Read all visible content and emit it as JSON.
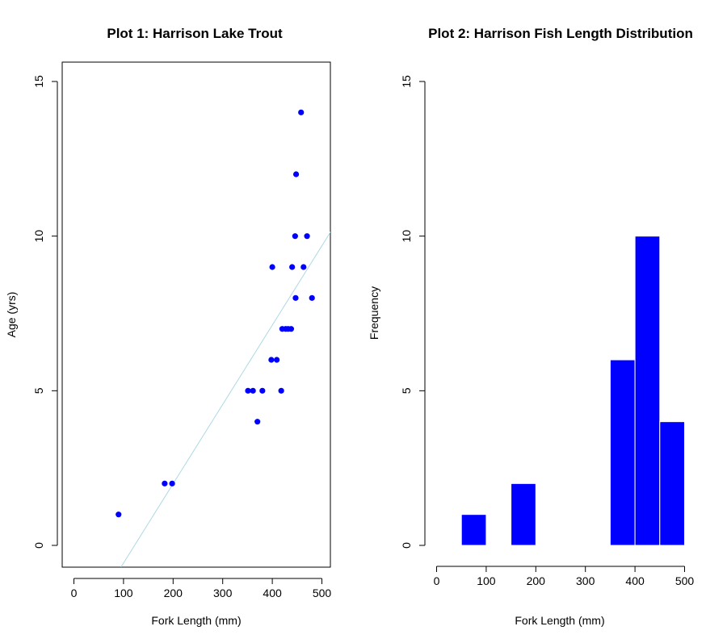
{
  "chart_data": [
    {
      "type": "scatter",
      "title": "Plot 1: Harrison Lake Trout",
      "xlabel": "Fork Length (mm)",
      "ylabel": "Age (yrs)",
      "xlim": [
        -20,
        520
      ],
      "ylim": [
        -0.6,
        15.6
      ],
      "xticks": [
        "0",
        "100",
        "200",
        "300",
        "400",
        "500"
      ],
      "yticks": [
        "0",
        "5",
        "10",
        "15"
      ],
      "point_color": "#0000ff",
      "points": [
        {
          "x": 90,
          "y": 1
        },
        {
          "x": 183,
          "y": 2
        },
        {
          "x": 198,
          "y": 2
        },
        {
          "x": 351,
          "y": 5
        },
        {
          "x": 361,
          "y": 5
        },
        {
          "x": 380,
          "y": 5
        },
        {
          "x": 418,
          "y": 5
        },
        {
          "x": 370,
          "y": 4
        },
        {
          "x": 398,
          "y": 6
        },
        {
          "x": 409,
          "y": 6
        },
        {
          "x": 420,
          "y": 7
        },
        {
          "x": 427,
          "y": 7
        },
        {
          "x": 432,
          "y": 7
        },
        {
          "x": 438,
          "y": 7
        },
        {
          "x": 447,
          "y": 8
        },
        {
          "x": 480,
          "y": 8
        },
        {
          "x": 400,
          "y": 9
        },
        {
          "x": 440,
          "y": 9
        },
        {
          "x": 463,
          "y": 9
        },
        {
          "x": 446,
          "y": 10
        },
        {
          "x": 470,
          "y": 10
        },
        {
          "x": 448,
          "y": 12
        },
        {
          "x": 458,
          "y": 14
        }
      ],
      "fit_line": {
        "color": "#add8e6",
        "x1": 95,
        "y1": -0.7,
        "x2": 520,
        "y2": 10.2
      }
    },
    {
      "type": "bar",
      "title": "Plot 2: Harrison Fish Length Distribution",
      "xlabel": "Fork Length (mm)",
      "ylabel": "Frequency",
      "xlim": [
        -20,
        520
      ],
      "ylim": [
        -0.6,
        15.6
      ],
      "xticks": [
        "0",
        "100",
        "200",
        "300",
        "400",
        "500"
      ],
      "yticks": [
        "0",
        "5",
        "10",
        "15"
      ],
      "bar_color": "#0000ff",
      "bins": [
        {
          "from": 50,
          "to": 100,
          "count": 1
        },
        {
          "from": 150,
          "to": 200,
          "count": 2
        },
        {
          "from": 350,
          "to": 400,
          "count": 6
        },
        {
          "from": 400,
          "to": 450,
          "count": 10
        },
        {
          "from": 450,
          "to": 500,
          "count": 4
        }
      ]
    }
  ]
}
